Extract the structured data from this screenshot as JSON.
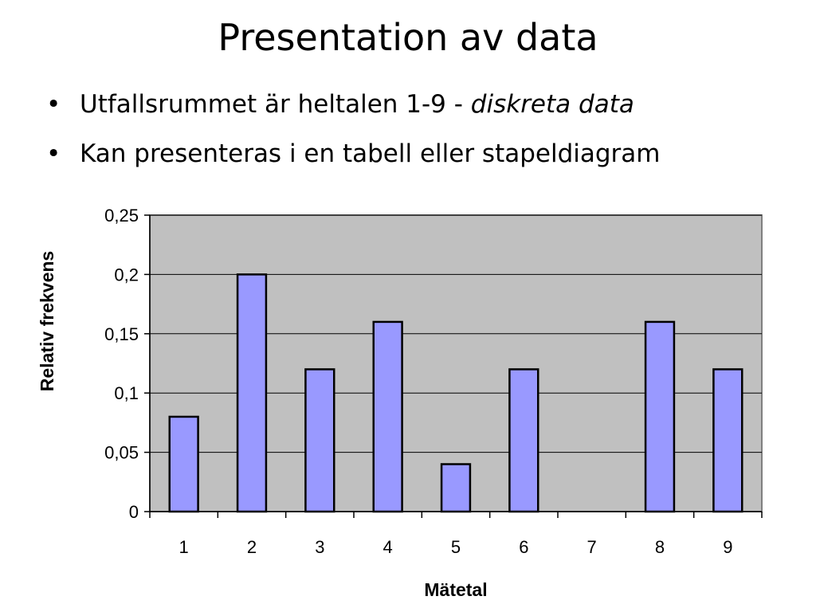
{
  "slide": {
    "title": "Presentation av data",
    "bullets": [
      {
        "marker": "•",
        "text": "Utfallsrummet är heltalen 1-9  - ",
        "emphasis": "diskreta data"
      },
      {
        "marker": "•",
        "text": "Kan presenteras i en tabell eller stapeldiagram",
        "emphasis": ""
      }
    ]
  },
  "chart_data": {
    "type": "bar",
    "title": "",
    "xlabel": "Mätetal",
    "ylabel": "Relativ frekvens",
    "categories": [
      "1",
      "2",
      "3",
      "4",
      "5",
      "6",
      "7",
      "8",
      "9"
    ],
    "values": [
      0.08,
      0.2,
      0.12,
      0.16,
      0.04,
      0.12,
      0,
      0.16,
      0.12
    ],
    "ylim": [
      0,
      0.25
    ],
    "yticks": [
      0,
      0.05,
      0.1,
      0.15,
      0.2,
      0.25
    ],
    "ytick_labels": [
      "0",
      "0,05",
      "0,1",
      "0,15",
      "0,2",
      "0,25"
    ],
    "grid": true,
    "legend": "none",
    "colors": {
      "plot_background": "#c0c0c0",
      "bar_fill": "#9999ff",
      "bar_stroke": "#000000",
      "gridline": "#000000",
      "frame": "#808080"
    }
  }
}
